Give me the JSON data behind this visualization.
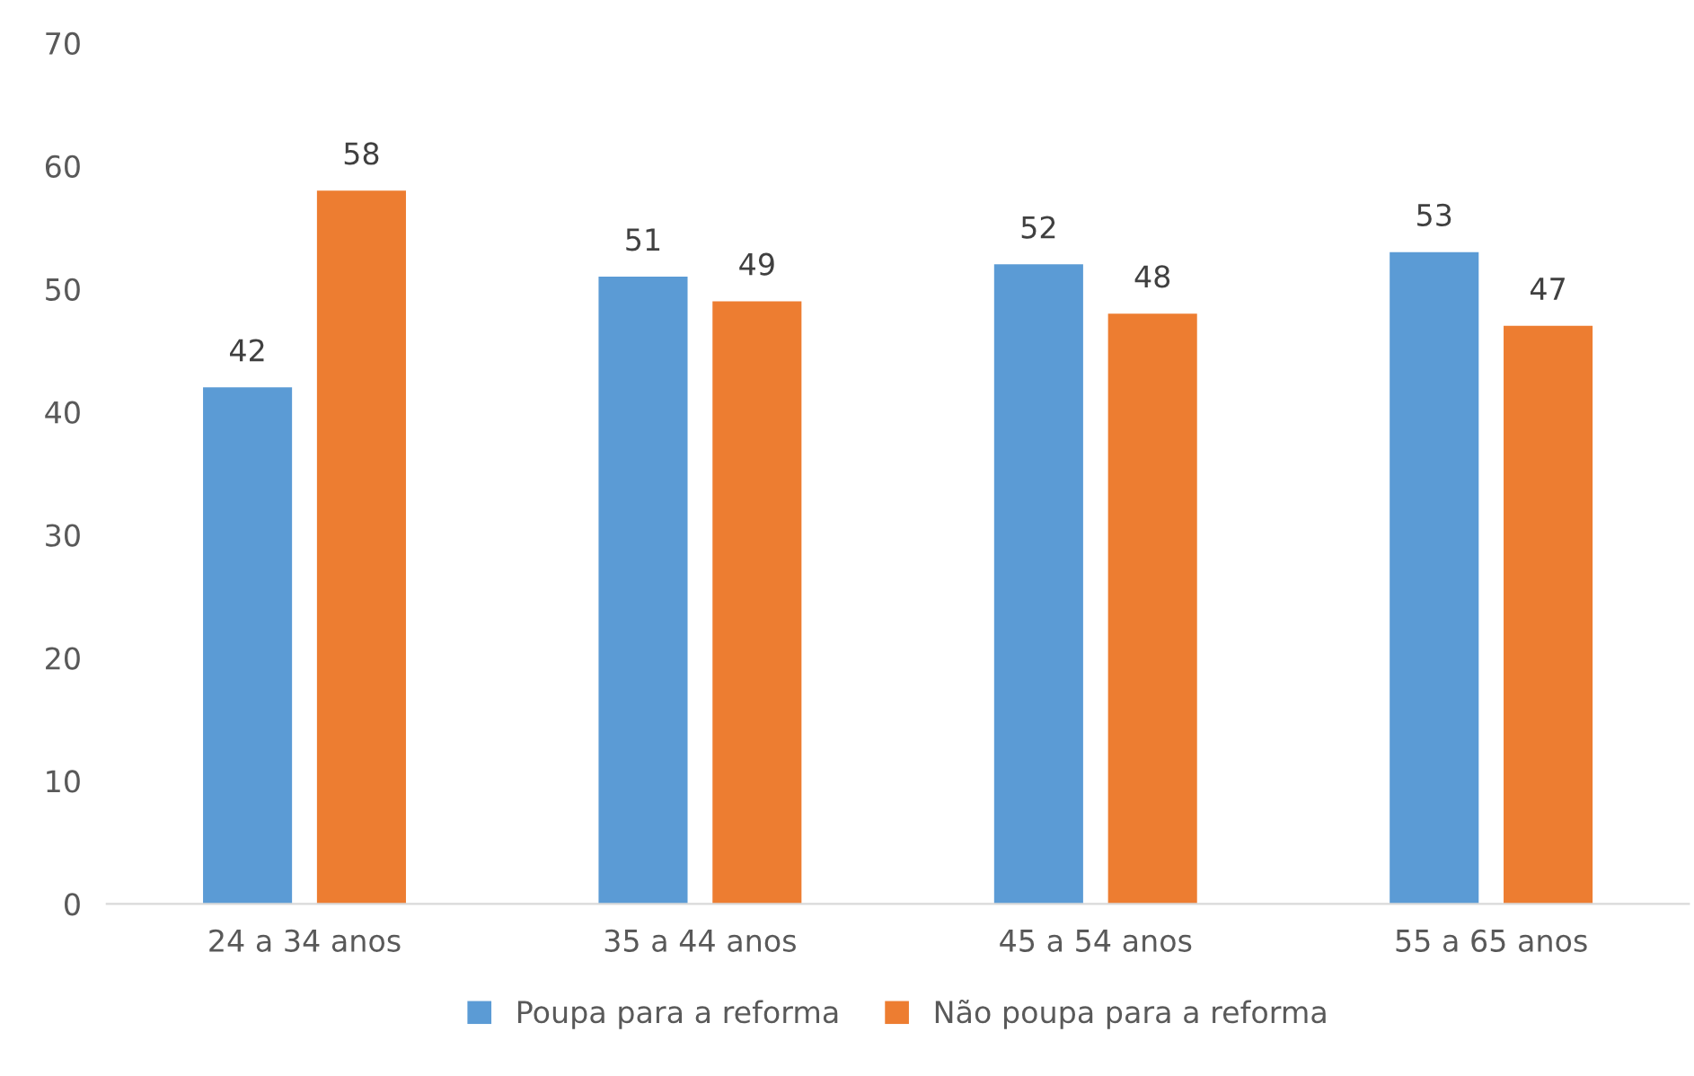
{
  "chart_data": {
    "type": "bar",
    "categories": [
      "24 a 34 anos",
      "35 a 44 anos",
      "45 a 54 anos",
      "55 a 65 anos"
    ],
    "series": [
      {
        "name": "Poupa para a reforma",
        "color": "#5b9bd5",
        "values": [
          42,
          51,
          52,
          53
        ]
      },
      {
        "name": "Não poupa para a reforma",
        "color": "#ed7d31",
        "values": [
          58,
          49,
          48,
          47
        ]
      }
    ],
    "ylim": [
      0,
      70
    ],
    "yticks": [
      0,
      10,
      20,
      30,
      40,
      50,
      60,
      70
    ],
    "grid": false,
    "legend": "bottom",
    "data_labels": true
  }
}
